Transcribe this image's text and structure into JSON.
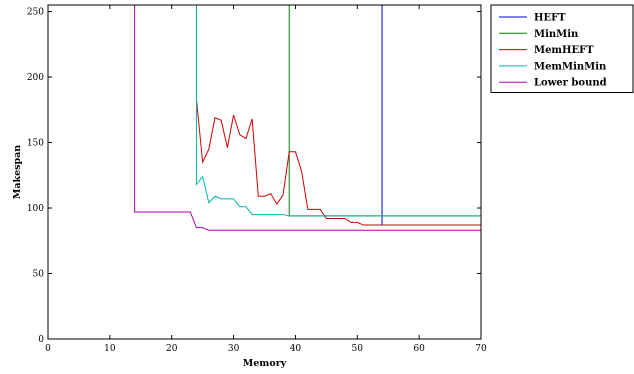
{
  "chart_data": {
    "type": "line",
    "xlabel": "Memory",
    "ylabel": "Makespan",
    "xlim": [
      0,
      70
    ],
    "ylim": [
      0,
      255
    ],
    "xticks": [
      0,
      10,
      20,
      30,
      40,
      50,
      60,
      70
    ],
    "yticks": [
      0,
      50,
      100,
      150,
      200,
      250
    ],
    "grid": false,
    "legend_position": "top-right-outside",
    "series": [
      {
        "name": "HEFT",
        "color": "#0000cc",
        "points": [
          [
            54,
            255
          ],
          [
            54,
            87
          ],
          [
            70,
            87
          ]
        ]
      },
      {
        "name": "MinMin",
        "color": "#008000",
        "points": [
          [
            39,
            255
          ],
          [
            39,
            94
          ],
          [
            70,
            94
          ]
        ]
      },
      {
        "name": "MemHEFT",
        "color": "#cc0000",
        "points": [
          [
            24,
            255
          ],
          [
            24,
            183
          ],
          [
            25,
            135
          ],
          [
            26,
            145
          ],
          [
            27,
            169
          ],
          [
            28,
            167
          ],
          [
            29,
            146
          ],
          [
            30,
            171
          ],
          [
            31,
            156
          ],
          [
            32,
            153
          ],
          [
            33,
            168
          ],
          [
            34,
            109
          ],
          [
            35,
            109
          ],
          [
            36,
            111
          ],
          [
            37,
            103
          ],
          [
            38,
            110
          ],
          [
            39,
            143
          ],
          [
            40,
            143
          ],
          [
            41,
            128
          ],
          [
            42,
            99
          ],
          [
            43,
            99
          ],
          [
            44,
            99
          ],
          [
            45,
            92
          ],
          [
            46,
            92
          ],
          [
            47,
            92
          ],
          [
            48,
            92
          ],
          [
            49,
            89
          ],
          [
            50,
            89
          ],
          [
            51,
            87
          ],
          [
            52,
            87
          ],
          [
            70,
            87
          ]
        ]
      },
      {
        "name": "MemMinMin",
        "color": "#00b3b3",
        "points": [
          [
            24,
            255
          ],
          [
            24,
            118
          ],
          [
            25,
            124
          ],
          [
            26,
            104
          ],
          [
            27,
            109
          ],
          [
            28,
            107
          ],
          [
            29,
            107
          ],
          [
            30,
            107
          ],
          [
            31,
            101
          ],
          [
            32,
            101
          ],
          [
            33,
            95
          ],
          [
            38,
            95
          ],
          [
            39,
            94
          ],
          [
            70,
            94
          ]
        ]
      },
      {
        "name": "Lower bound",
        "color": "#b300b3",
        "points": [
          [
            14,
            255
          ],
          [
            14,
            97
          ],
          [
            23,
            97
          ],
          [
            24,
            85
          ],
          [
            25,
            85
          ],
          [
            26,
            83
          ],
          [
            70,
            83
          ]
        ]
      }
    ]
  }
}
